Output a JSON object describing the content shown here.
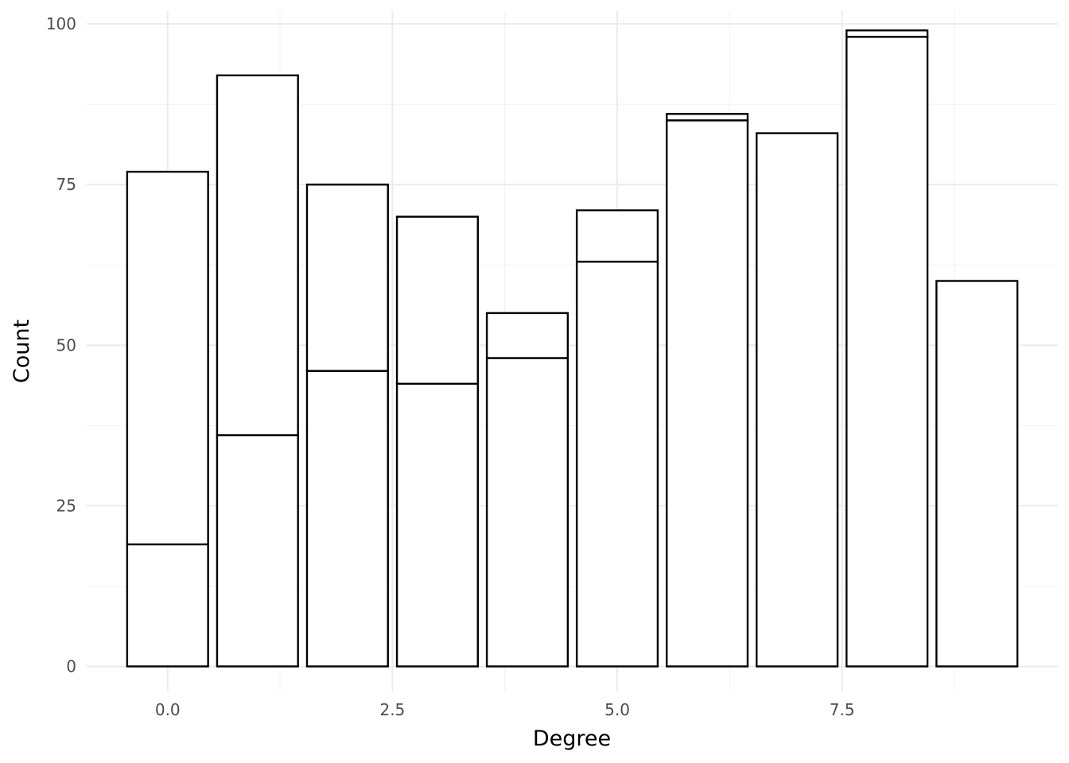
{
  "chart_data": {
    "type": "bar",
    "stacked": true,
    "title": "",
    "xlabel": "Degree",
    "ylabel": "Count",
    "xlim": [
      -0.9,
      9.9
    ],
    "ylim": [
      -3.9,
      102
    ],
    "x_ticks": [
      0,
      2.5,
      5,
      7.5
    ],
    "x_tick_labels": [
      "0.0",
      "2.5",
      "5.0",
      "7.5"
    ],
    "y_ticks": [
      0,
      25,
      50,
      75,
      100
    ],
    "y_tick_labels": [
      "0",
      "25",
      "50",
      "75",
      "100"
    ],
    "grid": true,
    "legend": "none",
    "bar_width": 0.9,
    "bar_fill": "#ffffff",
    "bar_stroke": "#000000",
    "x": [
      0,
      1,
      2,
      3,
      4,
      5,
      6,
      7,
      8,
      9
    ],
    "series": [
      {
        "values": [
          19,
          36,
          46,
          44,
          48,
          63,
          85,
          83,
          98,
          60
        ]
      },
      {
        "values": [
          58,
          56,
          29,
          26,
          7,
          8,
          1,
          0,
          1,
          0
        ]
      }
    ]
  }
}
